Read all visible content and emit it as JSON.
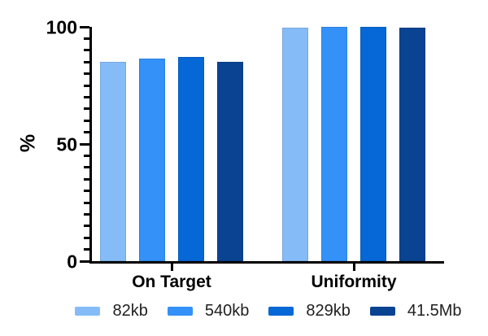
{
  "chart_data": {
    "type": "bar",
    "title": "",
    "ylabel": "%",
    "ylim": [
      0,
      100
    ],
    "yticks": [
      0,
      50,
      100
    ],
    "minor_tick_step": 5,
    "categories": [
      "On Target",
      "Uniformity"
    ],
    "series": [
      {
        "name": "82kb",
        "color": "#85BCF7",
        "values": [
          85,
          99.5
        ]
      },
      {
        "name": "540kb",
        "color": "#3391F8",
        "values": [
          86.5,
          100
        ]
      },
      {
        "name": "829kb",
        "color": "#0667D6",
        "values": [
          87,
          100
        ]
      },
      {
        "name": "41.5Mb",
        "color": "#0A4391",
        "values": [
          85,
          99.5
        ]
      }
    ],
    "legend_position": "bottom",
    "grid": "off",
    "axis_color": "#000000",
    "background": "#FFFFFF"
  }
}
